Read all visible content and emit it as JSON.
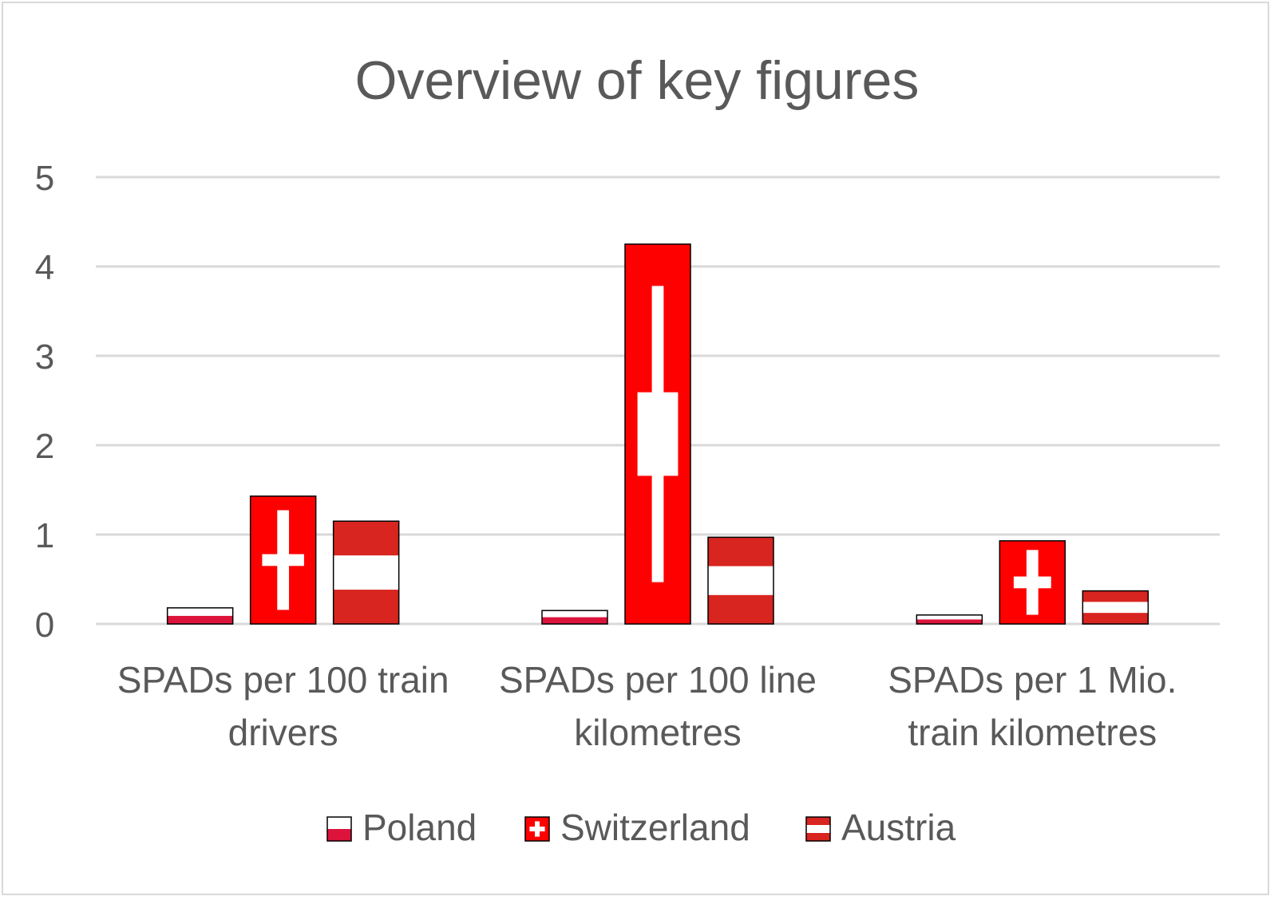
{
  "chart_data": {
    "type": "bar",
    "title": "Overview of key figures",
    "xlabel": "",
    "ylabel": "",
    "ylim": [
      0,
      5
    ],
    "yticks": [
      "0",
      "1",
      "2",
      "3",
      "4",
      "5"
    ],
    "grid": true,
    "legend_position": "bottom",
    "categories": [
      [
        "SPADs per 100 train",
        "drivers"
      ],
      [
        "SPADs per 100 line",
        "kilometres"
      ],
      [
        "SPADs per 1 Mio.",
        "train kilometres"
      ]
    ],
    "series": [
      {
        "name": "Poland",
        "flag": "poland",
        "values": [
          0.18,
          0.15,
          0.1
        ]
      },
      {
        "name": "Switzerland",
        "flag": "switzerland",
        "values": [
          1.43,
          4.25,
          0.93
        ]
      },
      {
        "name": "Austria",
        "flag": "austria",
        "values": [
          1.15,
          0.97,
          0.37
        ]
      }
    ]
  },
  "colors": {
    "poland_red": "#dc143c",
    "swiss_red": "#ff0000",
    "austria_red": "#d8251f",
    "white": "#ffffff",
    "grid": "#d9d9d9",
    "text": "#595959"
  }
}
